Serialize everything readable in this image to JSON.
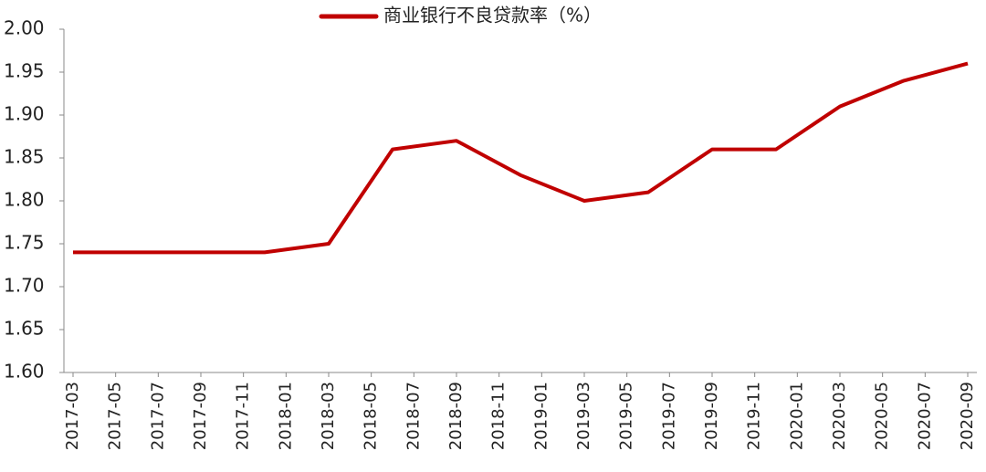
{
  "chart_data": {
    "type": "line",
    "x": [
      "2017-03",
      "2017-06",
      "2017-09",
      "2017-12",
      "2018-03",
      "2018-06",
      "2018-09",
      "2018-12",
      "2019-03",
      "2019-06",
      "2019-09",
      "2019-12",
      "2020-03",
      "2020-06",
      "2020-09"
    ],
    "series": [
      {
        "name": "商业银行不良贷款率（%）",
        "color": "#c00000",
        "values": [
          1.74,
          1.74,
          1.74,
          1.74,
          1.75,
          1.86,
          1.87,
          1.83,
          1.8,
          1.81,
          1.86,
          1.86,
          1.91,
          1.94,
          1.96
        ]
      }
    ],
    "xticks": [
      "2017-03",
      "2017-05",
      "2017-07",
      "2017-09",
      "2017-11",
      "2018-01",
      "2018-03",
      "2018-05",
      "2018-07",
      "2018-09",
      "2018-11",
      "2019-01",
      "2019-03",
      "2019-05",
      "2019-07",
      "2019-09",
      "2019-11",
      "2020-01",
      "2020-03",
      "2020-05",
      "2020-07",
      "2020-09"
    ],
    "ylim": [
      1.6,
      2.0
    ],
    "yticks": [
      {
        "value": 1.6,
        "label": "1.60"
      },
      {
        "value": 1.65,
        "label": "1.65"
      },
      {
        "value": 1.7,
        "label": "1.70"
      },
      {
        "value": 1.75,
        "label": "1.75"
      },
      {
        "value": 1.8,
        "label": "1.80"
      },
      {
        "value": 1.85,
        "label": "1.85"
      },
      {
        "value": 1.9,
        "label": "1.90"
      },
      {
        "value": 1.95,
        "label": "1.95"
      },
      {
        "value": 2.0,
        "label": "2.00"
      }
    ],
    "legend": "top",
    "grid": false
  }
}
